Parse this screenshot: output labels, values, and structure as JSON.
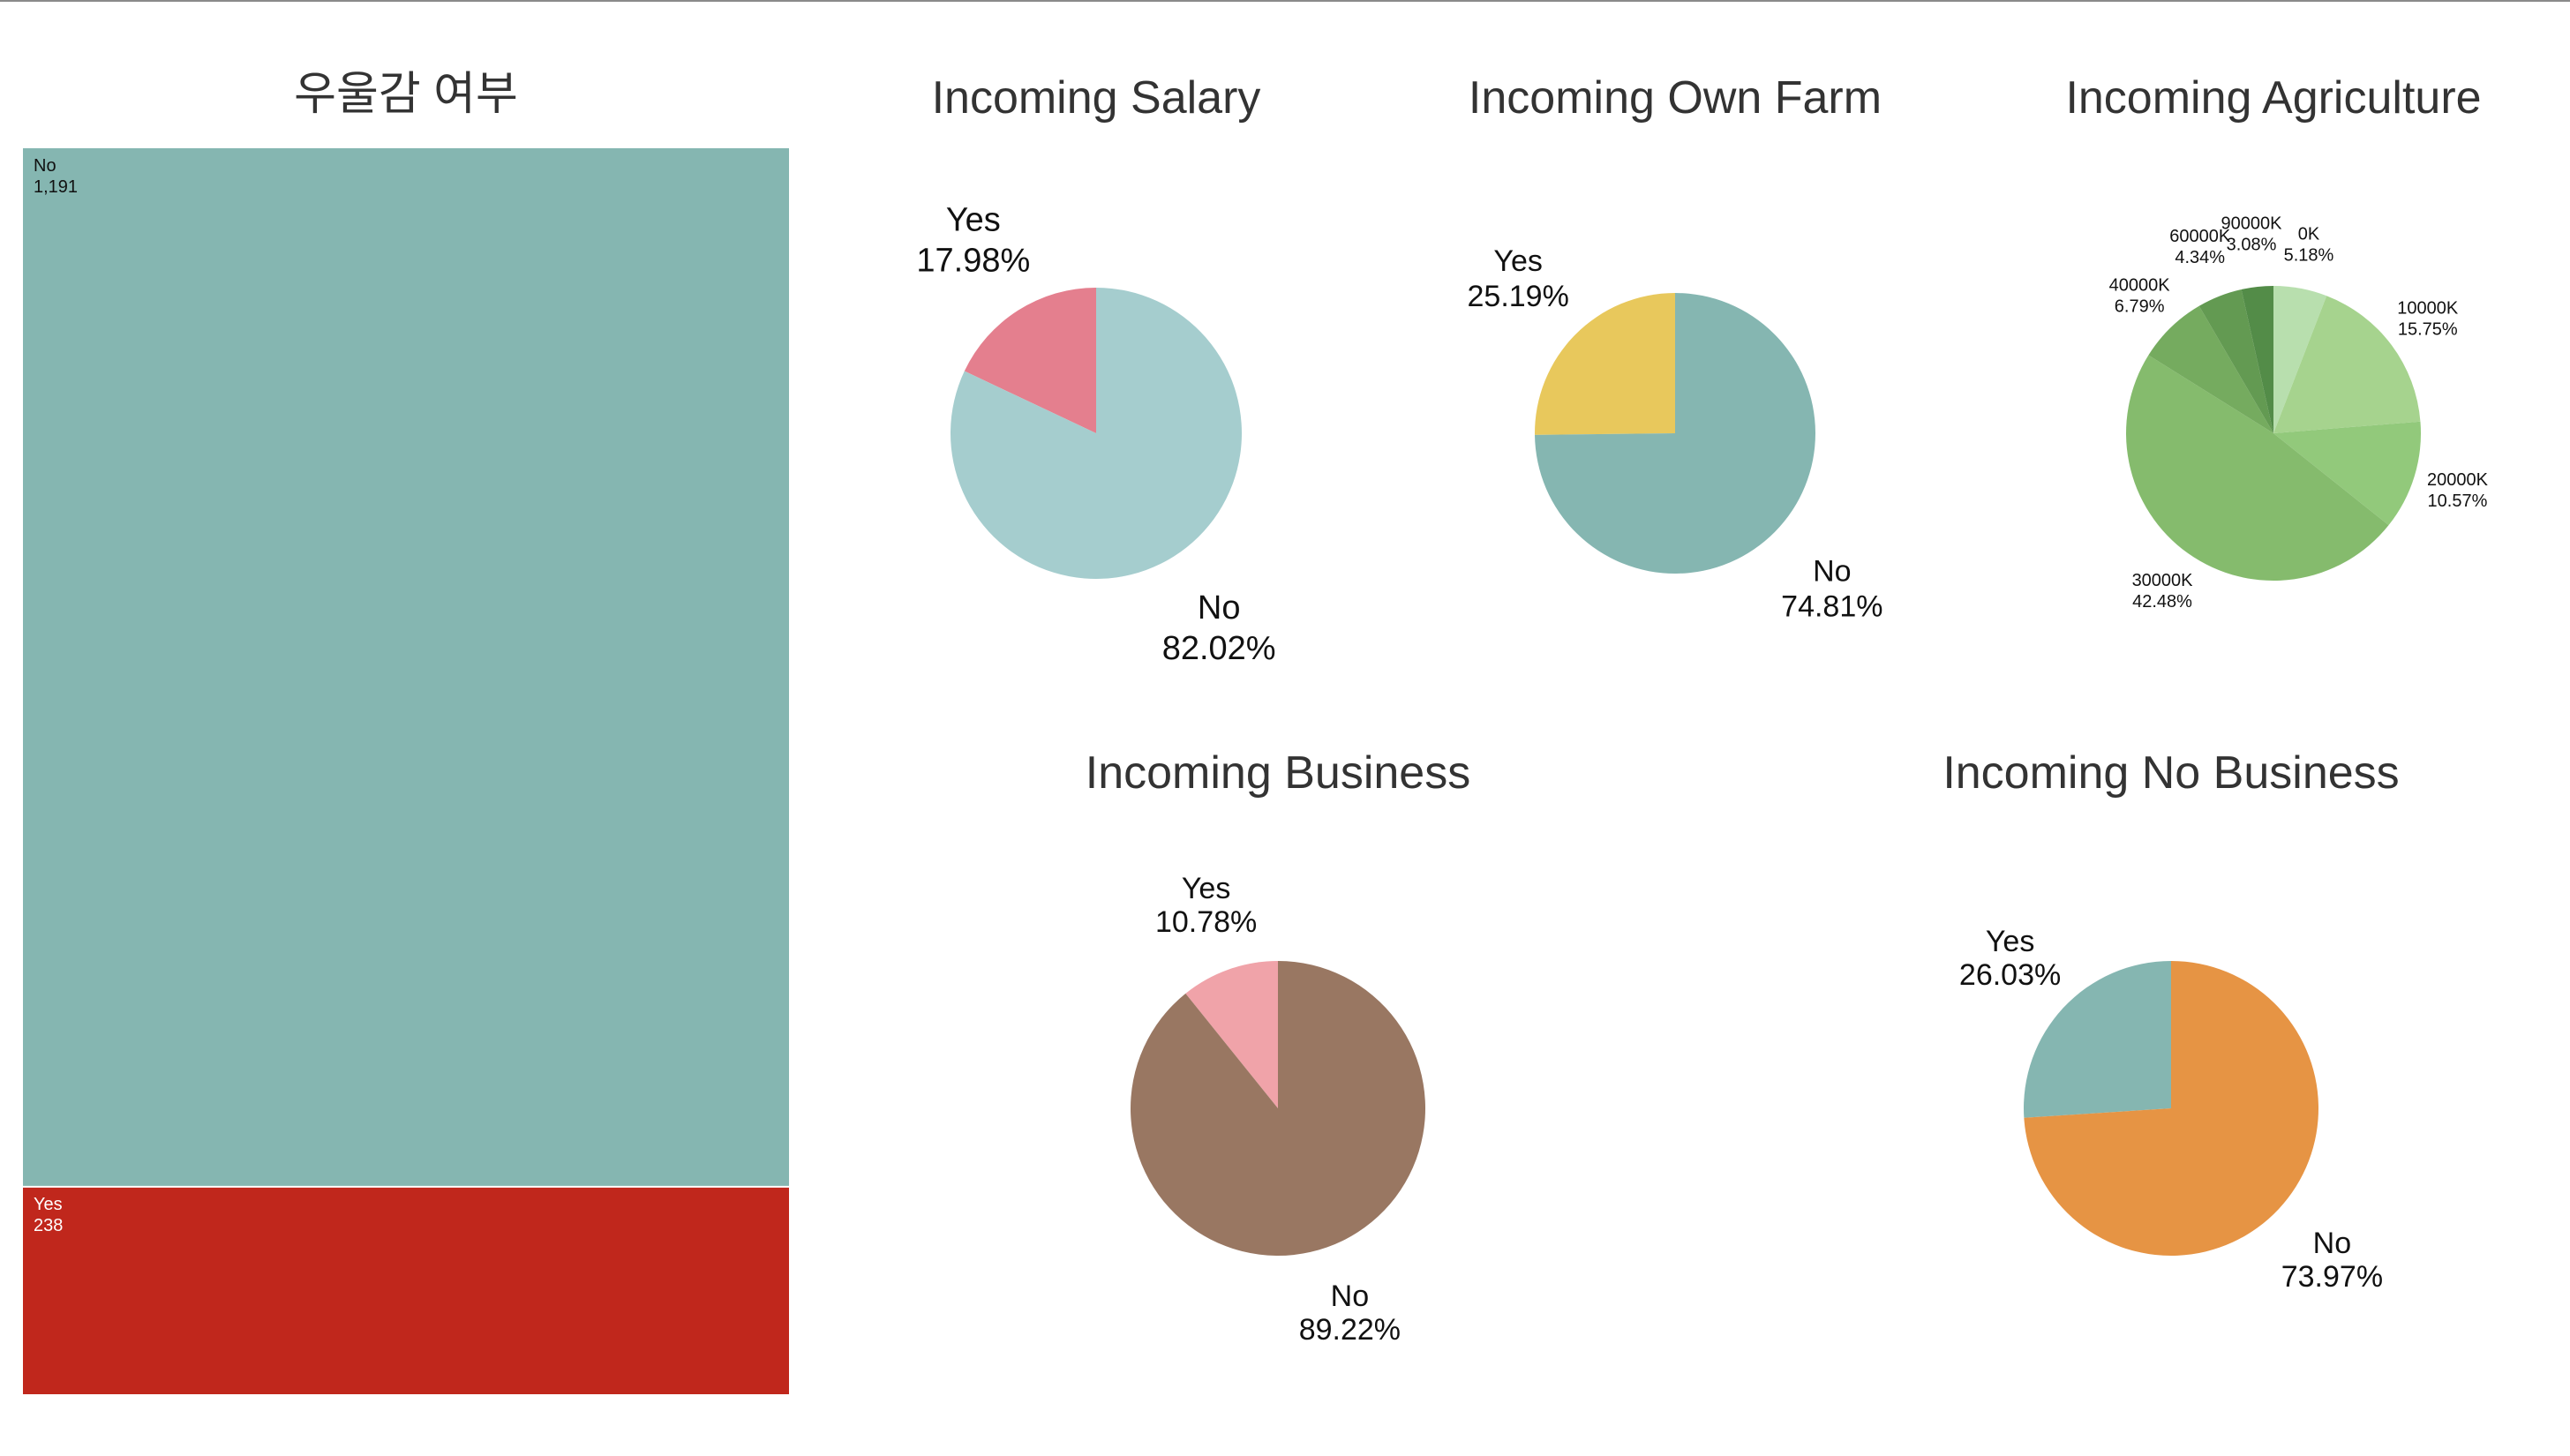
{
  "chart_data": [
    {
      "type": "bar",
      "title": "우울감 여부",
      "categories": [
        "No",
        "Yes"
      ],
      "values": [
        1191,
        238
      ],
      "value_labels": [
        "1,191",
        "238"
      ],
      "colors": [
        "#85b6b1",
        "#c0271c"
      ]
    },
    {
      "type": "pie",
      "title": "Incoming Salary",
      "categories": [
        "Yes",
        "No"
      ],
      "values": [
        17.98,
        82.02
      ],
      "value_labels": [
        "17.98%",
        "82.02%"
      ],
      "colors": [
        "#e47f8e",
        "#a5cdce"
      ]
    },
    {
      "type": "pie",
      "title": "Incoming Own Farm",
      "categories": [
        "Yes",
        "No"
      ],
      "values": [
        25.19,
        74.81
      ],
      "value_labels": [
        "25.19%",
        "74.81%"
      ],
      "colors": [
        "#e8c85c",
        "#85b6b1"
      ]
    },
    {
      "type": "pie",
      "title": "Incoming Agriculture",
      "categories": [
        "0K",
        "10000K",
        "20000K",
        "30000K",
        "40000K",
        "60000K",
        "90000K"
      ],
      "values": [
        5.18,
        15.75,
        10.57,
        42.48,
        6.79,
        4.34,
        3.08
      ],
      "value_labels": [
        "5.18%",
        "15.75%",
        "10.57%",
        "42.48%",
        "6.79%",
        "4.34%",
        "3.08%"
      ],
      "colors": [
        "#b8dfae",
        "#a6d38e",
        "#92c97b",
        "#85bb6d",
        "#75ab5f",
        "#639a52",
        "#538c48",
        "#477f3f",
        "#3c7236",
        "#32662e"
      ]
    },
    {
      "type": "pie",
      "title": "Incoming Business",
      "categories": [
        "Yes",
        "No"
      ],
      "values": [
        10.78,
        89.22
      ],
      "value_labels": [
        "10.78%",
        "89.22%"
      ],
      "colors": [
        "#f0a3a9",
        "#997762"
      ]
    },
    {
      "type": "pie",
      "title": "Incoming No Business",
      "categories": [
        "Yes",
        "No"
      ],
      "values": [
        26.03,
        73.97
      ],
      "value_labels": [
        "26.03%",
        "73.97%"
      ],
      "colors": [
        "#85b6b1",
        "#e69444"
      ]
    }
  ]
}
